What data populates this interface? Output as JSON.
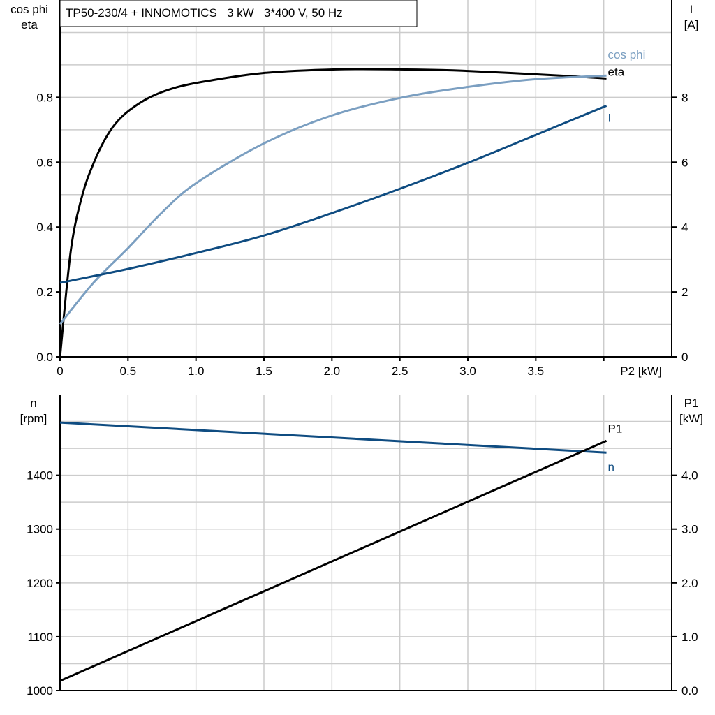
{
  "colors": {
    "eta": "#000000",
    "cosphi": "#7b9fc1",
    "I": "#0f4c81",
    "n": "#0f4c81",
    "P1": "#000000",
    "grid": "#cccccc"
  },
  "chart_data": [
    {
      "type": "line",
      "title": "TP50-230/4 + INNOMOTICS   3 kW   3*400 V, 50 Hz",
      "xlabel": "P2 [kW]",
      "ylabel_left": [
        "cos phi",
        "eta"
      ],
      "ylabel_right": [
        "I",
        "[A]"
      ],
      "xlim": [
        0,
        4.5
      ],
      "ylim_left": [
        0,
        1.1
      ],
      "ylim_right": [
        0,
        11
      ],
      "x_ticks": [
        "0",
        "0.5",
        "1.0",
        "1.5",
        "2.0",
        "2.5",
        "3.0",
        "3.5"
      ],
      "y_left_ticks": [
        "0.0",
        "0.2",
        "0.4",
        "0.6",
        "0.8"
      ],
      "y_right_ticks": [
        "0",
        "2",
        "4",
        "6",
        "8"
      ],
      "grid": true,
      "series": [
        {
          "name": "eta",
          "axis": "left",
          "x": [
            0,
            0.08,
            0.165,
            0.25,
            0.33,
            0.41,
            0.51,
            0.66,
            0.85,
            1.08,
            1.5,
            2.03,
            2.5,
            2.96,
            3.68,
            4.02
          ],
          "y": [
            0,
            0.33,
            0.5,
            0.6,
            0.67,
            0.72,
            0.76,
            0.8,
            0.83,
            0.85,
            0.875,
            0.886,
            0.886,
            0.882,
            0.867,
            0.858
          ]
        },
        {
          "name": "cos phi",
          "axis": "left",
          "x": [
            0,
            0.25,
            0.5,
            0.75,
            1.0,
            1.5,
            2.0,
            2.5,
            3.0,
            3.5,
            4.02
          ],
          "y": [
            0.101,
            0.23,
            0.335,
            0.445,
            0.535,
            0.658,
            0.744,
            0.798,
            0.832,
            0.856,
            0.867
          ]
        },
        {
          "name": "I",
          "axis": "right",
          "x": [
            0,
            0.5,
            1.0,
            1.5,
            2.0,
            2.5,
            3.0,
            3.5,
            4.02
          ],
          "y": [
            2.28,
            2.71,
            3.2,
            3.74,
            4.43,
            5.18,
            5.98,
            6.84,
            7.74
          ]
        }
      ]
    },
    {
      "type": "line",
      "ylabel_left": [
        "n",
        "[rpm]"
      ],
      "ylabel_right": [
        "P1",
        "[kW]"
      ],
      "xlim": [
        0,
        4.5
      ],
      "ylim_left": [
        1000,
        1550
      ],
      "ylim_right": [
        0,
        5.5
      ],
      "y_left_ticks": [
        "1000",
        "1100",
        "1200",
        "1300",
        "1400"
      ],
      "y_right_ticks": [
        "0.0",
        "1.0",
        "2.0",
        "3.0",
        "4.0"
      ],
      "grid": true,
      "series": [
        {
          "name": "n",
          "axis": "left",
          "x": [
            0,
            4.02
          ],
          "y": [
            1498,
            1442
          ]
        },
        {
          "name": "P1",
          "axis": "right",
          "x": [
            0,
            4.02
          ],
          "y": [
            0.18,
            4.64
          ]
        }
      ]
    }
  ]
}
